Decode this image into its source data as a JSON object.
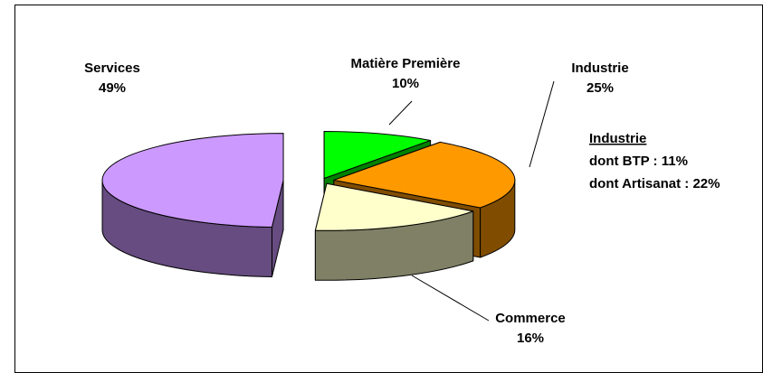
{
  "chart_data": {
    "type": "pie3d",
    "categories": [
      "Matière Première",
      "Industrie",
      "Commerce",
      "Services"
    ],
    "values": [
      10,
      25,
      16,
      49
    ],
    "value_labels": [
      "10%",
      "25%",
      "16%",
      "49%"
    ],
    "colors": [
      "#00ff00",
      "#ff9900",
      "#ffffcc",
      "#cc99ff"
    ],
    "side_colors": [
      "#008000",
      "#804d00",
      "#808066",
      "#664c80"
    ],
    "annotations": [
      "Industrie",
      "dont BTP : 11%",
      "dont Artisanat : 22%"
    ]
  }
}
